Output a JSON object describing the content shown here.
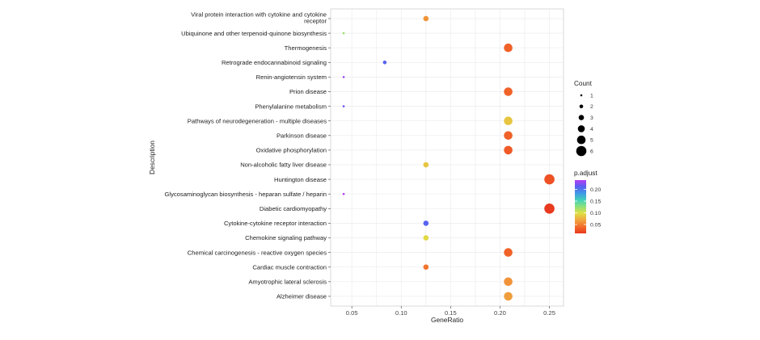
{
  "chart_data": {
    "type": "scatter",
    "xlabel": "GeneRatio",
    "ylabel": "Description",
    "xlim": [
      0.02857,
      0.26429
    ],
    "xticks": [
      0.05,
      0.1,
      0.15,
      0.2,
      0.25
    ],
    "xtick_labels": [
      "0.05",
      "0.10",
      "0.15",
      "0.20",
      "0.25"
    ],
    "grid": true,
    "legend_position": "right",
    "size_legend": {
      "title": "Count",
      "values": [
        1,
        2,
        3,
        4,
        5,
        6
      ],
      "labels": [
        "1",
        "2",
        "3",
        "4",
        "5",
        "6"
      ]
    },
    "color_legend": {
      "title": "p.adjust",
      "range": [
        0.012,
        0.24
      ],
      "ticks": [
        0.05,
        0.1,
        0.15,
        0.2
      ],
      "tick_labels": [
        "0.05",
        "0.10",
        "0.15",
        "0.20"
      ]
    },
    "points": [
      {
        "term": "Viral protein interaction with cytokine and cytokine receptor",
        "gene_ratio": 0.125,
        "count": 3,
        "p_adjust": 0.06
      },
      {
        "term": "Ubiquinone and other terpenoid-quinone biosynthesis",
        "gene_ratio": 0.0417,
        "count": 1,
        "p_adjust": 0.12
      },
      {
        "term": "Thermogenesis",
        "gene_ratio": 0.2083,
        "count": 5,
        "p_adjust": 0.035
      },
      {
        "term": "Retrograde endocannabinoid signaling",
        "gene_ratio": 0.0833,
        "count": 2,
        "p_adjust": 0.21
      },
      {
        "term": "Renin-angiotensin system",
        "gene_ratio": 0.0417,
        "count": 1,
        "p_adjust": 0.23
      },
      {
        "term": "Prion disease",
        "gene_ratio": 0.2083,
        "count": 5,
        "p_adjust": 0.035
      },
      {
        "term": "Phenylalanine metabolism",
        "gene_ratio": 0.0417,
        "count": 1,
        "p_adjust": 0.22
      },
      {
        "term": "Pathways of neurodegeneration - multiple diseases",
        "gene_ratio": 0.2083,
        "count": 5,
        "p_adjust": 0.085
      },
      {
        "term": "Parkinson disease",
        "gene_ratio": 0.2083,
        "count": 5,
        "p_adjust": 0.035
      },
      {
        "term": "Oxidative phosphorylation",
        "gene_ratio": 0.2083,
        "count": 5,
        "p_adjust": 0.03
      },
      {
        "term": "Non-alcoholic fatty liver disease",
        "gene_ratio": 0.125,
        "count": 3,
        "p_adjust": 0.085
      },
      {
        "term": "Huntington disease",
        "gene_ratio": 0.25,
        "count": 6,
        "p_adjust": 0.025
      },
      {
        "term": "Glycosaminoglycan biosynthesis - heparan sulfate / heparin",
        "gene_ratio": 0.0417,
        "count": 1,
        "p_adjust": 0.24
      },
      {
        "term": "Diabetic cardiomyopathy",
        "gene_ratio": 0.25,
        "count": 6,
        "p_adjust": 0.012
      },
      {
        "term": "Cytokine-cytokine receptor interaction",
        "gene_ratio": 0.125,
        "count": 3,
        "p_adjust": 0.21
      },
      {
        "term": "Chemokine signaling pathway",
        "gene_ratio": 0.125,
        "count": 3,
        "p_adjust": 0.095
      },
      {
        "term": "Chemical carcinogenesis - reactive oxygen species",
        "gene_ratio": 0.2083,
        "count": 5,
        "p_adjust": 0.035
      },
      {
        "term": "Cardiac muscle contraction",
        "gene_ratio": 0.125,
        "count": 3,
        "p_adjust": 0.045
      },
      {
        "term": "Amyotrophic lateral sclerosis",
        "gene_ratio": 0.2083,
        "count": 5,
        "p_adjust": 0.06
      },
      {
        "term": "Alzheimer disease",
        "gene_ratio": 0.2083,
        "count": 5,
        "p_adjust": 0.065
      }
    ]
  }
}
